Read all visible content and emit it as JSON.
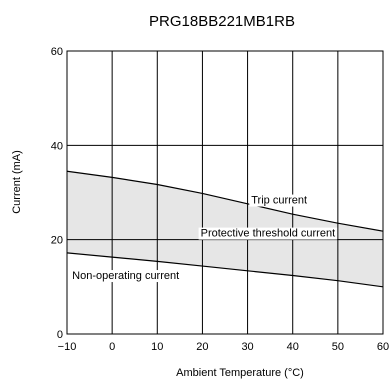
{
  "chart_data": {
    "type": "area",
    "title": "PRG18BB221MB1RB",
    "xlabel": "Ambient Temperature (°C)",
    "ylabel": "Current (mA)",
    "xlim": [
      -10,
      60
    ],
    "ylim": [
      0,
      60
    ],
    "x_ticks": [
      {
        "value": -10,
        "label": "−10"
      },
      {
        "value": 0,
        "label": "0"
      },
      {
        "value": 10,
        "label": "10"
      },
      {
        "value": 20,
        "label": "20"
      },
      {
        "value": 30,
        "label": "30"
      },
      {
        "value": 40,
        "label": "40"
      },
      {
        "value": 50,
        "label": "50"
      },
      {
        "value": 60,
        "label": "60"
      }
    ],
    "y_ticks": [
      {
        "value": 0,
        "label": "0"
      },
      {
        "value": 20,
        "label": "20"
      },
      {
        "value": 40,
        "label": "40"
      },
      {
        "value": 60,
        "label": "60"
      }
    ],
    "grid": true,
    "series": [
      {
        "name": "Trip current",
        "x": [
          -10,
          0,
          10,
          20,
          30,
          40,
          50,
          60
        ],
        "y": [
          34.5,
          33.2,
          31.7,
          29.8,
          27.6,
          25.4,
          23.5,
          21.8
        ]
      },
      {
        "name": "Non-operating current",
        "x": [
          -10,
          0,
          10,
          20,
          30,
          40,
          50,
          60
        ],
        "y": [
          17.2,
          16.3,
          15.4,
          14.4,
          13.4,
          12.4,
          11.3,
          10.0
        ]
      }
    ],
    "annotations": [
      {
        "text": "Trip current",
        "x": 37,
        "y": 28.5
      },
      {
        "text": "Protective threshold current",
        "x": 34.5,
        "y": 21.5
      },
      {
        "text": "Non-operating current",
        "x": 3,
        "y": 12.5
      }
    ],
    "fill_between": {
      "upper": "Trip current",
      "lower": "Non-operating current",
      "color": "#e6e6e6"
    }
  }
}
